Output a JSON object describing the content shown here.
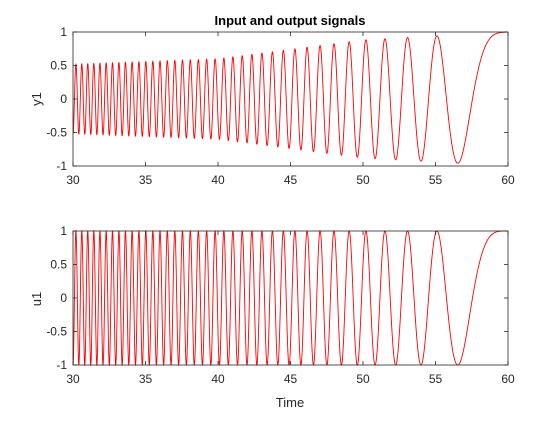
{
  "chart_data": [
    {
      "type": "line",
      "title": "Input and output signals",
      "xlabel": "",
      "ylabel": "y1",
      "xlim": [
        30,
        60
      ],
      "ylim": [
        -1,
        1
      ],
      "xticks": [
        "30",
        "35",
        "40",
        "45",
        "50",
        "55",
        "60"
      ],
      "yticks": [
        "-1",
        "-0.5",
        "0",
        "0.5",
        "1"
      ],
      "grid": false,
      "line_color": "#ff0000",
      "series": [
        {
          "signal": "chirp",
          "x_range": [
            30,
            60
          ],
          "amplitude_at_x": {
            "30": 0.52,
            "40": 0.6,
            "50": 0.88,
            "60": 1.0
          },
          "frequency_hz_at_x": {
            "30": 2.5,
            "60": 0.0
          },
          "peak_at_x": 60
        }
      ]
    },
    {
      "type": "line",
      "title": "",
      "xlabel": "Time",
      "ylabel": "u1",
      "xlim": [
        30,
        60
      ],
      "ylim": [
        -1,
        1
      ],
      "xticks": [
        "30",
        "35",
        "40",
        "45",
        "50",
        "55",
        "60"
      ],
      "yticks": [
        "-1",
        "-0.5",
        "0",
        "0.5",
        "1"
      ],
      "grid": false,
      "line_color": "#ff0000",
      "series": [
        {
          "signal": "chirp",
          "x_range": [
            30,
            60
          ],
          "amplitude_at_x": {
            "30": 1.0,
            "60": 1.0
          },
          "frequency_hz_at_x": {
            "30": 2.5,
            "60": 0.0
          },
          "peak_at_x": 60
        }
      ]
    }
  ]
}
